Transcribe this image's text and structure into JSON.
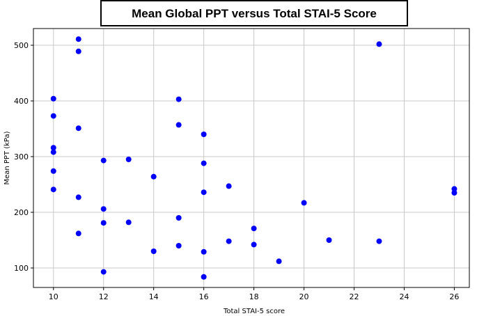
{
  "chart_data": {
    "type": "scatter",
    "title": "Mean Global PPT versus Total STAI-5 Score",
    "xlabel": "Total STAI-5 score",
    "ylabel": "Mean PPT (kPa)",
    "xlim": [
      9.2,
      26.6
    ],
    "ylim": [
      65,
      530
    ],
    "xticks": [
      10,
      12,
      14,
      16,
      18,
      20,
      22,
      24,
      26
    ],
    "yticks": [
      100,
      200,
      300,
      400,
      500
    ],
    "grid": true,
    "marker_color": "#0000ff",
    "series": [
      {
        "values": [
          {
            "x": 10,
            "y": 404
          },
          {
            "x": 10,
            "y": 373
          },
          {
            "x": 10,
            "y": 316
          },
          {
            "x": 10,
            "y": 308
          },
          {
            "x": 10,
            "y": 274
          },
          {
            "x": 10,
            "y": 241
          },
          {
            "x": 11,
            "y": 511
          },
          {
            "x": 11,
            "y": 489
          },
          {
            "x": 11,
            "y": 351
          },
          {
            "x": 11,
            "y": 227
          },
          {
            "x": 11,
            "y": 162
          },
          {
            "x": 12,
            "y": 293
          },
          {
            "x": 12,
            "y": 206
          },
          {
            "x": 12,
            "y": 181
          },
          {
            "x": 12,
            "y": 93
          },
          {
            "x": 13,
            "y": 295
          },
          {
            "x": 13,
            "y": 182
          },
          {
            "x": 14,
            "y": 264
          },
          {
            "x": 14,
            "y": 130
          },
          {
            "x": 15,
            "y": 403
          },
          {
            "x": 15,
            "y": 357
          },
          {
            "x": 15,
            "y": 190
          },
          {
            "x": 15,
            "y": 140
          },
          {
            "x": 16,
            "y": 340
          },
          {
            "x": 16,
            "y": 288
          },
          {
            "x": 16,
            "y": 236
          },
          {
            "x": 16,
            "y": 129
          },
          {
            "x": 16,
            "y": 84
          },
          {
            "x": 17,
            "y": 247
          },
          {
            "x": 17,
            "y": 148
          },
          {
            "x": 18,
            "y": 171
          },
          {
            "x": 18,
            "y": 142
          },
          {
            "x": 19,
            "y": 112
          },
          {
            "x": 20,
            "y": 217
          },
          {
            "x": 21,
            "y": 150
          },
          {
            "x": 23,
            "y": 502
          },
          {
            "x": 23,
            "y": 148
          },
          {
            "x": 26,
            "y": 242
          },
          {
            "x": 26,
            "y": 235
          }
        ]
      }
    ]
  }
}
